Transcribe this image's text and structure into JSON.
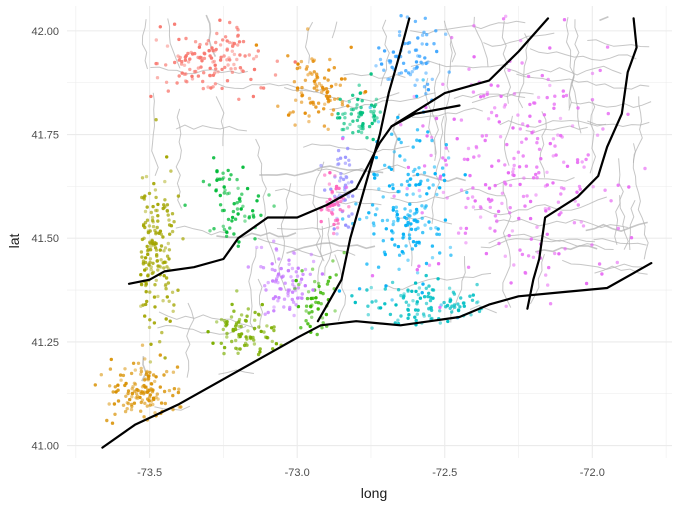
{
  "chart_data": {
    "type": "scatter",
    "title": "",
    "xlabel": "long",
    "ylabel": "lat",
    "xlim": [
      -73.78,
      -71.73
    ],
    "ylim": [
      40.97,
      42.06
    ],
    "x_ticks": [
      -73.5,
      -73.0,
      -72.5,
      -72.0
    ],
    "x_tick_labels": [
      "-73.5",
      "-73.0",
      "-72.5",
      "-72.0"
    ],
    "y_ticks": [
      41.0,
      41.25,
      41.5,
      41.75,
      42.0
    ],
    "y_tick_labels": [
      "41.00",
      "41.25",
      "41.50",
      "41.75",
      "42.00"
    ],
    "grid": true,
    "legend": "none",
    "background_color": "#ffffff",
    "grid_color": "#ebebeb",
    "road_color": "#b3b3b3",
    "highway_color": "#000000",
    "regions": [
      {
        "color": "#F8766D",
        "center": [
          -73.3,
          41.93
        ],
        "spread": [
          0.14,
          0.07
        ],
        "count": 140
      },
      {
        "color": "#E38900",
        "center": [
          -72.93,
          41.86
        ],
        "spread": [
          0.09,
          0.08
        ],
        "count": 90
      },
      {
        "color": "#D89000",
        "center": [
          -73.52,
          41.13
        ],
        "spread": [
          0.1,
          0.06
        ],
        "count": 130
      },
      {
        "color": "#A3A500",
        "center": [
          -73.49,
          41.47
        ],
        "spread": [
          0.07,
          0.17
        ],
        "count": 170
      },
      {
        "color": "#7CAE00",
        "center": [
          -73.17,
          41.28
        ],
        "spread": [
          0.09,
          0.05
        ],
        "count": 80
      },
      {
        "color": "#39B600",
        "center": [
          -72.93,
          41.35
        ],
        "spread": [
          0.06,
          0.08
        ],
        "count": 50
      },
      {
        "color": "#00BF7D",
        "center": [
          -72.78,
          41.8
        ],
        "spread": [
          0.06,
          0.05
        ],
        "count": 60
      },
      {
        "color": "#00BFC4",
        "center": [
          -72.55,
          41.33
        ],
        "spread": [
          0.2,
          0.05
        ],
        "count": 110
      },
      {
        "color": "#00B0F6",
        "center": [
          -72.62,
          41.58
        ],
        "spread": [
          0.13,
          0.19
        ],
        "count": 170
      },
      {
        "color": "#35A2FF",
        "center": [
          -72.6,
          41.93
        ],
        "spread": [
          0.09,
          0.07
        ],
        "count": 70
      },
      {
        "color": "#00BA38",
        "center": [
          -73.22,
          41.58
        ],
        "spread": [
          0.09,
          0.08
        ],
        "count": 70
      },
      {
        "color": "#9590FF",
        "center": [
          -72.84,
          41.62
        ],
        "spread": [
          0.05,
          0.09
        ],
        "count": 50
      },
      {
        "color": "#C77CFF",
        "center": [
          -73.04,
          41.4
        ],
        "spread": [
          0.08,
          0.07
        ],
        "count": 80
      },
      {
        "color": "#E76BF3",
        "center": [
          -72.23,
          41.67
        ],
        "spread": [
          0.32,
          0.25
        ],
        "count": 260
      },
      {
        "color": "#FF62BC",
        "center": [
          -72.88,
          41.58
        ],
        "spread": [
          0.04,
          0.06
        ],
        "count": 40
      }
    ],
    "highways": [
      [
        [
          -73.66,
          40.995
        ],
        [
          -73.55,
          41.05
        ],
        [
          -73.4,
          41.1
        ],
        [
          -73.25,
          41.16
        ],
        [
          -73.1,
          41.22
        ],
        [
          -73.0,
          41.26
        ],
        [
          -72.92,
          41.29
        ],
        [
          -72.8,
          41.3
        ],
        [
          -72.65,
          41.29
        ],
        [
          -72.55,
          41.3
        ],
        [
          -72.45,
          41.31
        ],
        [
          -72.35,
          41.34
        ],
        [
          -72.25,
          41.36
        ],
        [
          -72.1,
          41.37
        ],
        [
          -71.95,
          41.38
        ],
        [
          -71.8,
          41.44
        ]
      ],
      [
        [
          -73.57,
          41.39
        ],
        [
          -73.5,
          41.4
        ],
        [
          -73.45,
          41.42
        ],
        [
          -73.35,
          41.43
        ],
        [
          -73.25,
          41.45
        ],
        [
          -73.2,
          41.5
        ],
        [
          -73.1,
          41.55
        ],
        [
          -73.0,
          41.55
        ],
        [
          -72.9,
          41.58
        ],
        [
          -72.8,
          41.62
        ],
        [
          -72.72,
          41.73
        ],
        [
          -72.68,
          41.77
        ],
        [
          -72.6,
          41.8
        ],
        [
          -72.45,
          41.82
        ]
      ],
      [
        [
          -72.93,
          41.3
        ],
        [
          -72.85,
          41.4
        ],
        [
          -72.82,
          41.5
        ],
        [
          -72.78,
          41.6
        ],
        [
          -72.72,
          41.75
        ],
        [
          -72.69,
          41.85
        ],
        [
          -72.65,
          41.95
        ],
        [
          -72.62,
          42.03
        ]
      ],
      [
        [
          -72.68,
          41.77
        ],
        [
          -72.5,
          41.85
        ],
        [
          -72.35,
          41.88
        ],
        [
          -72.25,
          41.95
        ],
        [
          -72.15,
          42.03
        ]
      ],
      [
        [
          -72.22,
          41.33
        ],
        [
          -72.2,
          41.4
        ],
        [
          -72.18,
          41.45
        ],
        [
          -72.16,
          41.55
        ],
        [
          -72.05,
          41.6
        ],
        [
          -71.98,
          41.65
        ],
        [
          -71.95,
          41.72
        ],
        [
          -71.9,
          41.8
        ],
        [
          -71.88,
          41.9
        ],
        [
          -71.85,
          41.96
        ],
        [
          -71.86,
          42.03
        ]
      ]
    ]
  }
}
